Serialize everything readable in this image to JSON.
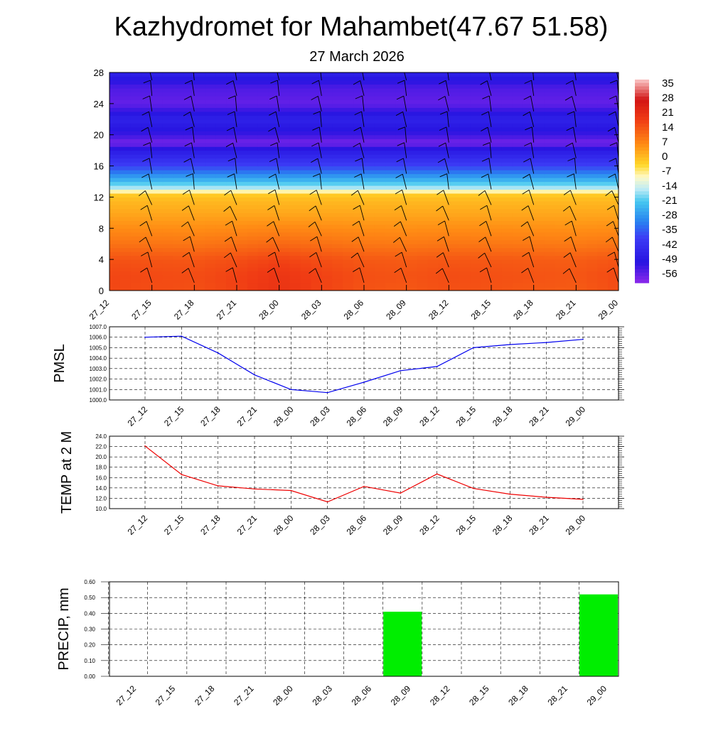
{
  "header": {
    "title": "Kazhydromet for Mahambet(47.67 51.58)",
    "subtitle": "27 March 2026"
  },
  "time_labels": [
    "27_12",
    "27_15",
    "27_18",
    "27_21",
    "28_00",
    "28_03",
    "28_06",
    "28_09",
    "28_12",
    "28_15",
    "28_18",
    "28_21",
    "29_00"
  ],
  "chart_data": [
    {
      "type": "heatmap",
      "name": "temperature-cross-section",
      "x_categories": [
        "27_12",
        "27_15",
        "27_18",
        "27_21",
        "28_00",
        "28_03",
        "28_06",
        "28_09",
        "28_12",
        "28_15",
        "28_18",
        "28_21",
        "29_00"
      ],
      "ylim": [
        0,
        28
      ],
      "y_ticks": [
        "0",
        "4",
        "8",
        "12",
        "16",
        "20",
        "24",
        "28"
      ],
      "colorbar": {
        "labels": [
          "35",
          "28",
          "21",
          "14",
          "7",
          "0",
          "-7",
          "-14",
          "-21",
          "-28",
          "-35",
          "-42",
          "-49",
          "-56"
        ],
        "range": [
          -60,
          38
        ]
      },
      "profile_levels": [
        0,
        2,
        4,
        6,
        8,
        10,
        11.5,
        12.5,
        13,
        14,
        16,
        18,
        19,
        20,
        22,
        24,
        26,
        28
      ],
      "profile_values": [
        13,
        14,
        13,
        9,
        6,
        3,
        1,
        -2,
        -14,
        -22,
        -38,
        -48,
        -58,
        -52,
        -46,
        -56,
        -54,
        -46
      ],
      "column_offsets": [
        1.5,
        1.2,
        1.0,
        1.8,
        3.0,
        1.8,
        0.8,
        0.5,
        1.0,
        0.8,
        0.5,
        0.3,
        1.2
      ],
      "wind_barbs": "wind barbs plotted at each level"
    },
    {
      "type": "line",
      "name": "pmsl",
      "ylabel": "PMSL",
      "categories": [
        "27_12",
        "27_15",
        "27_18",
        "27_21",
        "28_00",
        "28_03",
        "28_06",
        "28_09",
        "28_12",
        "28_15",
        "28_18",
        "28_21",
        "29_00"
      ],
      "values": [
        1006.0,
        1006.1,
        1004.5,
        1002.4,
        1001.0,
        1000.7,
        1001.7,
        1002.8,
        1003.2,
        1005.0,
        1005.3,
        1005.5,
        1005.8
      ],
      "ylim": [
        1000.0,
        1007.0
      ],
      "y_ticks": [
        "1000.0",
        "1001.0",
        "1002.0",
        "1003.0",
        "1004.0",
        "1005.0",
        "1006.0",
        "1007.0"
      ],
      "color": "#0000ee"
    },
    {
      "type": "line",
      "name": "temp-2m",
      "ylabel": "TEMP at 2 M",
      "categories": [
        "27_12",
        "27_15",
        "27_18",
        "27_21",
        "28_00",
        "28_03",
        "28_06",
        "28_09",
        "28_12",
        "28_15",
        "28_18",
        "28_21",
        "29_00"
      ],
      "values": [
        22.1,
        16.6,
        14.4,
        13.8,
        13.5,
        11.3,
        14.3,
        13.0,
        16.7,
        13.9,
        12.8,
        12.2,
        11.8
      ],
      "ylim": [
        10.0,
        24.0
      ],
      "y_ticks": [
        "10.0",
        "12.0",
        "14.0",
        "16.0",
        "18.0",
        "20.0",
        "22.0",
        "24.0"
      ],
      "color": "#ee0000"
    },
    {
      "type": "bar",
      "name": "precip",
      "ylabel": "PRECIP, mm",
      "categories": [
        "27_12",
        "27_15",
        "27_18",
        "27_21",
        "28_00",
        "28_03",
        "28_06",
        "28_09",
        "28_12",
        "28_15",
        "28_18",
        "28_21",
        "29_00"
      ],
      "values": [
        0,
        0,
        0,
        0,
        0,
        0,
        0,
        0.41,
        0,
        0,
        0,
        0,
        0.52
      ],
      "ylim": [
        0,
        0.6
      ],
      "y_ticks": [
        "0.00",
        "0.10",
        "0.20",
        "0.30",
        "0.40",
        "0.50",
        "0.60"
      ],
      "color": "#00ee00"
    }
  ]
}
